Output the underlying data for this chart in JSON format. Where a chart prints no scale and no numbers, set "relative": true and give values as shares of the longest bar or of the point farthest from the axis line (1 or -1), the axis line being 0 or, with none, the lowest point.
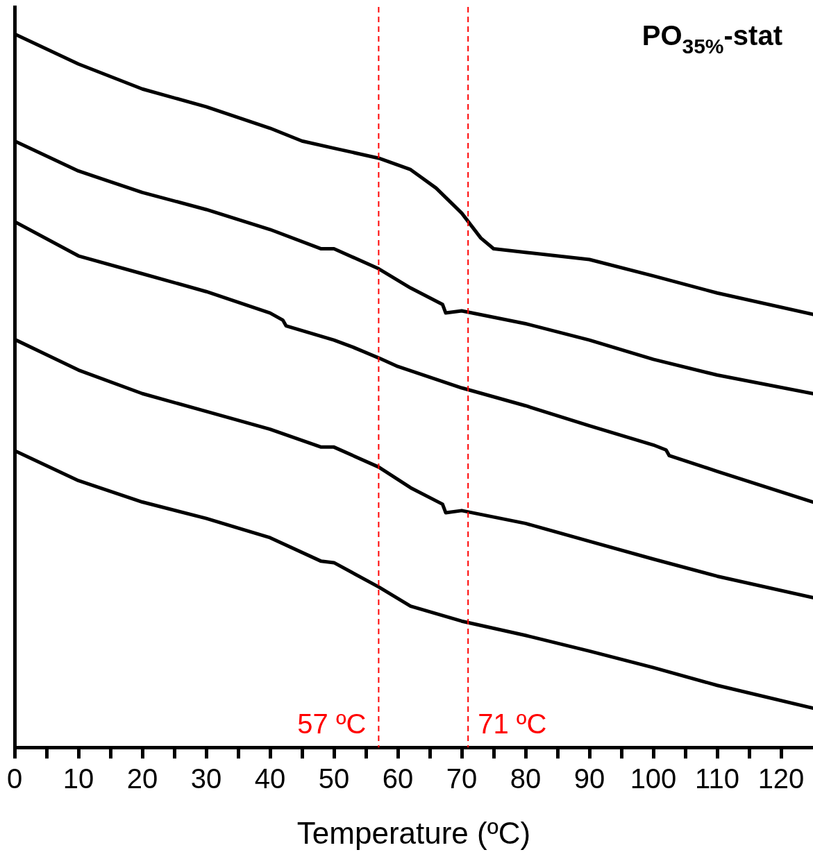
{
  "chart_data": {
    "type": "line",
    "title": "PO$_{35%}$-stat",
    "xlabel": "Temperature (ºC)",
    "relative": true,
    "xlim": [
      0,
      125
    ],
    "xticks": [
      0,
      {
        "value": 5,
        "label": null
      },
      10,
      {
        "value": 15,
        "label": null
      },
      20,
      {
        "value": 25,
        "label": null
      },
      30,
      {
        "value": 35,
        "label": null
      },
      40,
      {
        "value": 45,
        "label": null
      },
      50,
      {
        "value": 55,
        "label": null
      },
      60,
      {
        "value": 65,
        "label": null
      },
      70,
      {
        "value": 75,
        "label": null
      },
      80,
      {
        "value": 85,
        "label": null
      },
      90,
      {
        "value": 95,
        "label": null
      },
      100,
      {
        "value": 105,
        "label": null
      },
      110,
      {
        "value": 115,
        "label": null
      },
      120
    ],
    "tick_labels": "x",
    "grid": false,
    "legend": false,
    "marker": "none",
    "line_style": "solid",
    "series": [
      {
        "color": "#000000",
        "x": [
          0,
          10,
          20,
          30,
          40,
          45,
          50,
          57,
          62,
          66,
          70,
          73,
          75,
          80,
          90,
          100,
          110,
          125
        ],
        "values": [
          1.0,
          0.958,
          0.923,
          0.898,
          0.868,
          0.85,
          0.84,
          0.826,
          0.81,
          0.784,
          0.749,
          0.714,
          0.699,
          0.694,
          0.684,
          0.661,
          0.637,
          0.607
        ]
      },
      {
        "color": "#000000",
        "x": [
          0,
          10,
          20,
          30,
          40,
          48,
          50,
          57,
          62,
          67,
          67.5,
          70,
          80,
          90,
          100,
          110,
          125
        ],
        "values": [
          0.85,
          0.808,
          0.778,
          0.754,
          0.726,
          0.699,
          0.699,
          0.671,
          0.644,
          0.621,
          0.609,
          0.612,
          0.594,
          0.571,
          0.544,
          0.522,
          0.496
        ]
      },
      {
        "color": "#000000",
        "x": [
          0,
          10,
          20,
          30,
          40,
          42,
          42.5,
          50,
          53,
          57,
          60,
          70,
          80,
          90,
          100,
          102,
          102.5,
          110,
          125
        ],
        "values": [
          0.737,
          0.689,
          0.664,
          0.639,
          0.609,
          0.599,
          0.591,
          0.571,
          0.561,
          0.546,
          0.534,
          0.504,
          0.479,
          0.451,
          0.424,
          0.417,
          0.409,
          0.387,
          0.344
        ]
      },
      {
        "color": "#000000",
        "x": [
          0,
          10,
          20,
          30,
          40,
          48,
          50,
          57,
          62,
          67,
          67.5,
          70,
          80,
          90,
          100,
          110,
          125
        ],
        "values": [
          0.572,
          0.529,
          0.496,
          0.471,
          0.446,
          0.421,
          0.421,
          0.393,
          0.364,
          0.341,
          0.329,
          0.332,
          0.314,
          0.289,
          0.264,
          0.24,
          0.21
        ]
      },
      {
        "color": "#000000",
        "x": [
          0,
          10,
          20,
          30,
          40,
          48,
          50,
          57,
          62,
          70,
          80,
          90,
          100,
          110,
          125
        ],
        "values": [
          0.416,
          0.374,
          0.344,
          0.321,
          0.294,
          0.261,
          0.259,
          0.225,
          0.198,
          0.177,
          0.157,
          0.135,
          0.112,
          0.087,
          0.055
        ]
      }
    ],
    "ref_lines": [
      {
        "axis": "x",
        "value": 57,
        "label": "57 ºC",
        "color": "#ff0000",
        "line_style": "dashed"
      },
      {
        "axis": "x",
        "value": 71,
        "label": "71 ºC",
        "color": "#ff0000",
        "line_style": "dashed"
      }
    ]
  }
}
